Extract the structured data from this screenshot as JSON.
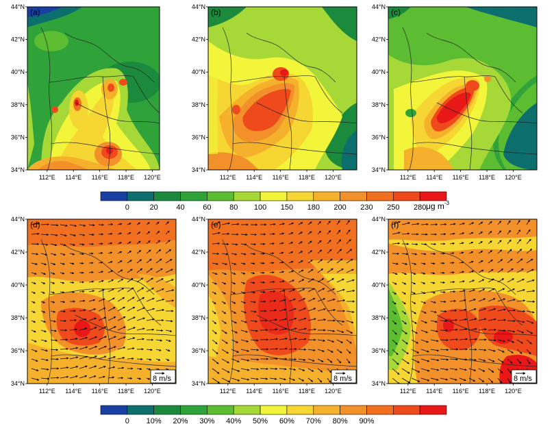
{
  "panels": [
    {
      "label": "(a)"
    },
    {
      "label": "(b)"
    },
    {
      "label": "(c)"
    },
    {
      "label": "(d)"
    },
    {
      "label": "(e)"
    },
    {
      "label": "(f)"
    }
  ],
  "axes": {
    "lat_labels": [
      "34°N",
      "36°N",
      "38°N",
      "40°N",
      "42°N",
      "44°N"
    ],
    "lon_labels": [
      "112°E",
      "114°E",
      "116°E",
      "118°E",
      "120°E"
    ],
    "lat_values": [
      34,
      36,
      38,
      40,
      42,
      44
    ],
    "lon_values": [
      112,
      114,
      116,
      118,
      120
    ],
    "lon_range": [
      110.5,
      121.8
    ],
    "lat_range": [
      34,
      44
    ]
  },
  "colorbar_top": {
    "labels": [
      "0",
      "20",
      "40",
      "60",
      "80",
      "100",
      "150",
      "180",
      "200",
      "230",
      "250",
      "280"
    ],
    "unit": "μg m",
    "unit_exp": "-3",
    "colors": [
      "#1a3fa3",
      "#0d6e6e",
      "#1c8a3c",
      "#2fa33a",
      "#5cbd32",
      "#a6d838",
      "#f2f53a",
      "#f6d632",
      "#f5b02c",
      "#f2902a",
      "#f07020",
      "#ee4a1c",
      "#e81818"
    ]
  },
  "colorbar_bottom": {
    "labels": [
      "0",
      "10%",
      "20%",
      "30%",
      "40%",
      "50%",
      "60%",
      "70%",
      "80%",
      "90%"
    ],
    "colors": [
      "#1a3fa3",
      "#0d6e6e",
      "#1c8a3c",
      "#2fa33a",
      "#5cbd32",
      "#a6d838",
      "#f2f53a",
      "#f6d632",
      "#f5b02c",
      "#f2902a",
      "#f07020",
      "#ee4a1c",
      "#e81818"
    ]
  },
  "wind_reference": {
    "label": "8 m/s"
  }
}
